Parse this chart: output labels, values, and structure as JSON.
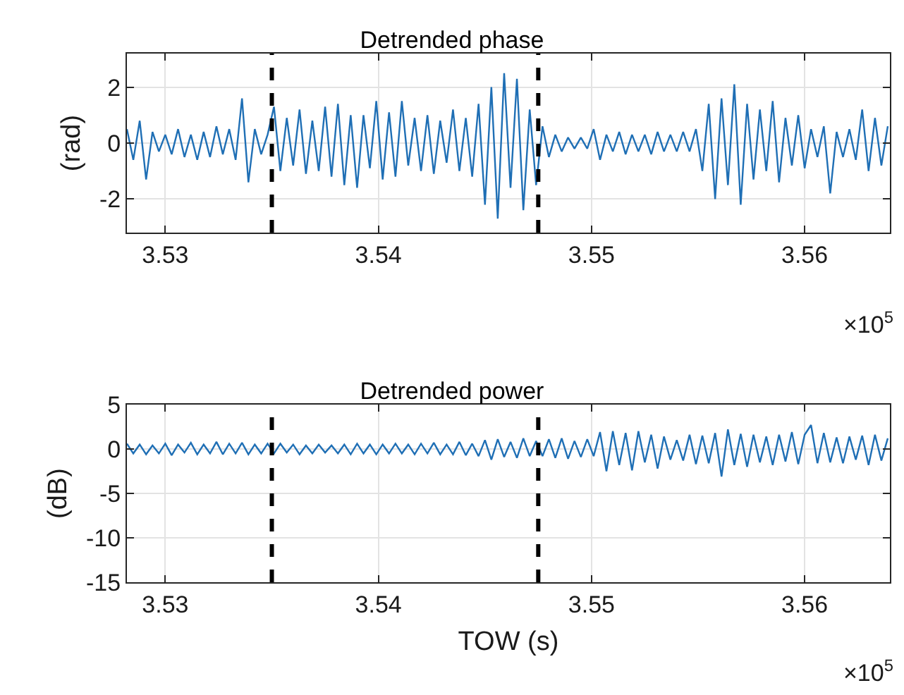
{
  "chart_data": [
    {
      "type": "line",
      "title": "Detrended phase",
      "ylabel": "(rad)",
      "annotations": [
        "×10$^{5}$"
      ],
      "x": [
        3.5282,
        3.5285,
        3.5288,
        3.5291,
        3.5294,
        3.5297,
        3.53,
        3.5303,
        3.5306,
        3.5309,
        3.5312,
        3.5315,
        3.5318,
        3.5321,
        3.5324,
        3.5327,
        3.533,
        3.5333,
        3.5336,
        3.5339,
        3.5342,
        3.5345,
        3.5348,
        3.5351,
        3.5354,
        3.5357,
        3.536,
        3.5363,
        3.5366,
        3.5369,
        3.5372,
        3.5375,
        3.5378,
        3.5381,
        3.5384,
        3.5387,
        3.539,
        3.5393,
        3.5396,
        3.5399,
        3.5402,
        3.5405,
        3.5408,
        3.5411,
        3.5414,
        3.5417,
        3.542,
        3.5423,
        3.5426,
        3.5429,
        3.5432,
        3.5435,
        3.5438,
        3.5441,
        3.5444,
        3.5447,
        3.545,
        3.5453,
        3.5456,
        3.5459,
        3.5462,
        3.5465,
        3.5468,
        3.5471,
        3.5474,
        3.5477,
        3.548,
        3.5483,
        3.5486,
        3.5489,
        3.5492,
        3.5495,
        3.5498,
        3.5501,
        3.5504,
        3.5507,
        3.551,
        3.5513,
        3.5516,
        3.5519,
        3.5522,
        3.5525,
        3.5528,
        3.5531,
        3.5534,
        3.5537,
        3.554,
        3.5543,
        3.5546,
        3.5549,
        3.5552,
        3.5555,
        3.5558,
        3.5561,
        3.5564,
        3.5567,
        3.557,
        3.5573,
        3.5576,
        3.5579,
        3.5582,
        3.5585,
        3.5588,
        3.5591,
        3.5594,
        3.5597,
        3.56,
        3.5603,
        3.5606,
        3.5609,
        3.5612,
        3.5615,
        3.5618,
        3.5621,
        3.5624,
        3.5627,
        3.563,
        3.5633,
        3.5636,
        3.5639
      ],
      "series": [
        {
          "color": "#1f6fb5",
          "values": [
            0.5,
            -0.6,
            0.8,
            -1.3,
            0.4,
            -0.3,
            0.3,
            -0.4,
            0.5,
            -0.5,
            0.3,
            -0.6,
            0.4,
            -0.5,
            0.6,
            -0.4,
            0.5,
            -0.6,
            1.6,
            -1.4,
            0.5,
            -0.4,
            0.3,
            1.3,
            -1.0,
            0.9,
            -0.8,
            1.2,
            -1.1,
            0.8,
            -1.0,
            1.3,
            -1.2,
            1.4,
            -1.5,
            1.0,
            -1.6,
            1.0,
            -0.9,
            1.5,
            -1.3,
            1.1,
            -1.2,
            1.5,
            -0.8,
            0.9,
            -1.0,
            1.0,
            -1.1,
            0.8,
            -0.7,
            1.2,
            -1.0,
            0.9,
            -1.2,
            1.4,
            -2.2,
            2.0,
            -2.7,
            2.5,
            -1.6,
            2.3,
            -2.4,
            1.2,
            -1.5,
            0.6,
            -0.5,
            0.3,
            -0.3,
            0.2,
            -0.2,
            0.2,
            -0.2,
            0.5,
            -0.6,
            0.3,
            -0.3,
            0.4,
            -0.4,
            0.3,
            -0.3,
            0.3,
            -0.4,
            0.4,
            -0.3,
            0.3,
            -0.3,
            0.4,
            -0.3,
            0.5,
            -1.0,
            1.4,
            -2.0,
            1.6,
            -1.5,
            2.1,
            -2.2,
            1.4,
            -1.3,
            1.2,
            -1.0,
            1.5,
            -1.4,
            0.9,
            -0.8,
            1.0,
            -0.9,
            0.5,
            -0.5,
            0.6,
            -1.8,
            0.4,
            -0.5,
            0.5,
            -0.6,
            1.2,
            -1.0,
            0.9,
            -0.8,
            0.6
          ]
        }
      ],
      "xlim": [
        3.5282,
        3.564
      ],
      "xticks": [
        3.53,
        3.54,
        3.55,
        3.56
      ],
      "ylim": [
        -3.2,
        3.2
      ],
      "yticks": [
        -2,
        0,
        2
      ],
      "grid": true,
      "ref_lines": [
        {
          "axis": "x",
          "value": 3.535,
          "color": "#000000",
          "line_style": "dashed"
        },
        {
          "axis": "x",
          "value": 3.5475,
          "color": "#000000",
          "line_style": "dashed"
        }
      ]
    },
    {
      "type": "line",
      "title": "Detrended power",
      "ylabel": "(dB)",
      "xlabel": "TOW (s)",
      "annotations": [
        "×10$^{5}$"
      ],
      "x": [
        3.5282,
        3.5285,
        3.5288,
        3.5291,
        3.5294,
        3.5297,
        3.53,
        3.5303,
        3.5306,
        3.5309,
        3.5312,
        3.5315,
        3.5318,
        3.5321,
        3.5324,
        3.5327,
        3.533,
        3.5333,
        3.5336,
        3.5339,
        3.5342,
        3.5345,
        3.5348,
        3.5351,
        3.5354,
        3.5357,
        3.536,
        3.5363,
        3.5366,
        3.5369,
        3.5372,
        3.5375,
        3.5378,
        3.5381,
        3.5384,
        3.5387,
        3.539,
        3.5393,
        3.5396,
        3.5399,
        3.5402,
        3.5405,
        3.5408,
        3.5411,
        3.5414,
        3.5417,
        3.542,
        3.5423,
        3.5426,
        3.5429,
        3.5432,
        3.5435,
        3.5438,
        3.5441,
        3.5444,
        3.5447,
        3.545,
        3.5453,
        3.5456,
        3.5459,
        3.5462,
        3.5465,
        3.5468,
        3.5471,
        3.5474,
        3.5477,
        3.548,
        3.5483,
        3.5486,
        3.5489,
        3.5492,
        3.5495,
        3.5498,
        3.5501,
        3.5504,
        3.5507,
        3.551,
        3.5513,
        3.5516,
        3.5519,
        3.5522,
        3.5525,
        3.5528,
        3.5531,
        3.5534,
        3.5537,
        3.554,
        3.5543,
        3.5546,
        3.5549,
        3.5552,
        3.5555,
        3.5558,
        3.5561,
        3.5564,
        3.5567,
        3.557,
        3.5573,
        3.5576,
        3.5579,
        3.5582,
        3.5585,
        3.5588,
        3.5591,
        3.5594,
        3.5597,
        3.56,
        3.5603,
        3.5606,
        3.5609,
        3.5612,
        3.5615,
        3.5618,
        3.5621,
        3.5624,
        3.5627,
        3.563,
        3.5633,
        3.5636,
        3.5639
      ],
      "series": [
        {
          "color": "#1f6fb5",
          "values": [
            0.6,
            -0.5,
            0.5,
            -0.6,
            0.4,
            -0.5,
            0.6,
            -0.7,
            0.5,
            -0.4,
            0.7,
            -0.6,
            0.5,
            -0.5,
            0.8,
            -0.6,
            0.6,
            -0.5,
            0.7,
            -0.6,
            0.5,
            -0.5,
            0.6,
            -0.5,
            0.6,
            -0.4,
            0.5,
            -0.6,
            0.4,
            -0.5,
            0.5,
            -0.4,
            0.4,
            -0.5,
            0.5,
            -0.6,
            0.6,
            -0.5,
            0.5,
            -0.6,
            0.5,
            -0.5,
            0.6,
            -0.5,
            0.5,
            -0.6,
            0.6,
            -0.5,
            0.7,
            -0.6,
            0.5,
            -0.6,
            0.8,
            -0.7,
            0.6,
            -0.8,
            1.0,
            -1.2,
            1.1,
            -0.9,
            0.8,
            -1.0,
            1.2,
            -0.8,
            0.9,
            -0.8,
            1.1,
            -1.0,
            1.2,
            -1.1,
            0.9,
            -0.9,
            1.1,
            -0.8,
            1.9,
            -2.5,
            2.0,
            -1.8,
            1.8,
            -2.4,
            2.0,
            -1.5,
            1.6,
            -2.2,
            1.4,
            -1.2,
            1.0,
            -1.3,
            1.6,
            -1.7,
            1.5,
            -1.6,
            1.8,
            -3.1,
            2.2,
            -1.8,
            1.7,
            -2.0,
            1.6,
            -1.5,
            1.4,
            -1.8,
            1.6,
            -1.4,
            1.9,
            -1.7,
            1.6,
            2.7,
            -1.6,
            1.8,
            -1.5,
            1.3,
            -1.6,
            1.4,
            -1.2,
            1.5,
            -1.8,
            1.6,
            -1.3,
            1.2
          ]
        }
      ],
      "xlim": [
        3.5282,
        3.564
      ],
      "xticks": [
        3.53,
        3.54,
        3.55,
        3.56
      ],
      "ylim": [
        -15,
        5
      ],
      "yticks": [
        -15,
        -10,
        -5,
        0,
        5
      ],
      "grid": true,
      "ref_lines": [
        {
          "axis": "x",
          "value": 3.535,
          "color": "#000000",
          "line_style": "dashed"
        },
        {
          "axis": "x",
          "value": 3.5475,
          "color": "#000000",
          "line_style": "dashed"
        }
      ]
    }
  ]
}
